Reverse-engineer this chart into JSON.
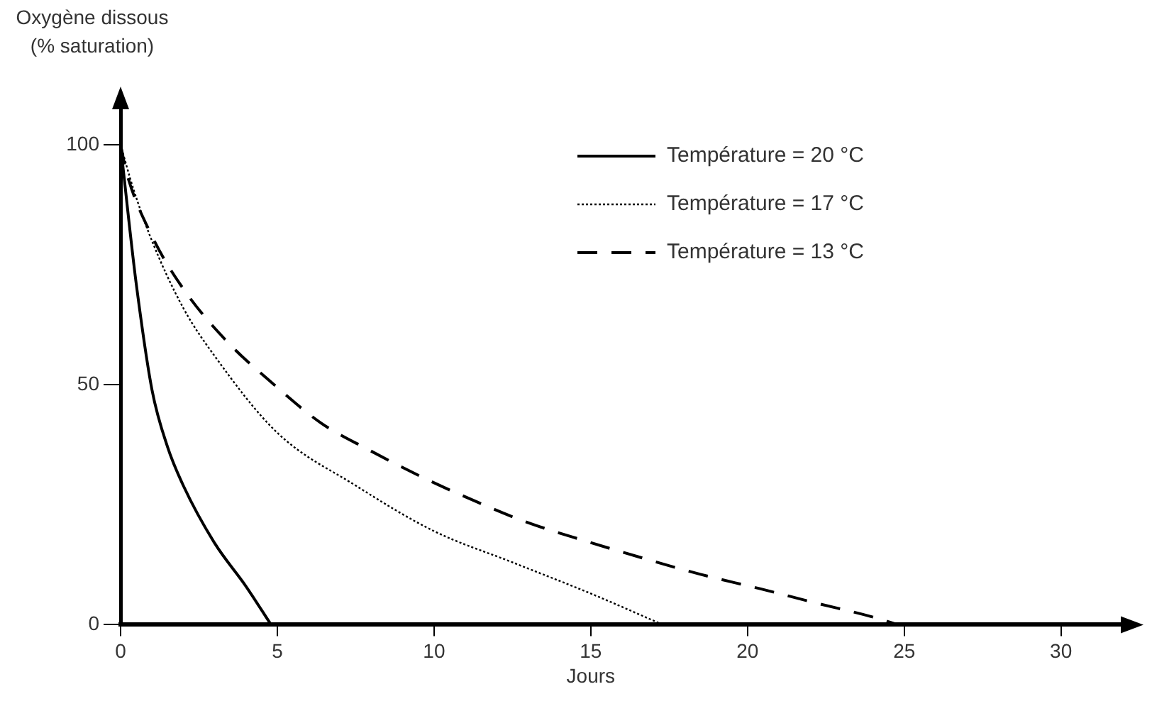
{
  "chart_data": {
    "type": "line",
    "xlabel": "Jours",
    "ylabel": "Oxygène dissous\n(% saturation)",
    "xlim": [
      0,
      32
    ],
    "ylim": [
      0,
      108
    ],
    "xticks": [
      0,
      5,
      10,
      15,
      20,
      25,
      30
    ],
    "yticks": [
      0,
      50,
      100
    ],
    "grid": false,
    "legend": "top right",
    "marker": "none",
    "series": [
      {
        "name": "Température = 20 °C",
        "color": "#000000",
        "line_style": "solid",
        "x": [
          0,
          0.25,
          0.5,
          1,
          1.5,
          2,
          3,
          4,
          4.8
        ],
        "values": [
          100,
          85,
          71,
          49,
          37,
          29,
          17,
          8,
          0
        ]
      },
      {
        "name": "Température = 17 °C",
        "color": "#000000",
        "line_style": "dotted",
        "x": [
          0,
          0.4,
          1,
          2,
          3,
          5,
          7.5,
          10,
          12.5,
          15,
          17.3
        ],
        "values": [
          100,
          91,
          80,
          66,
          56,
          40,
          29,
          19.5,
          13,
          6.5,
          0
        ]
      },
      {
        "name": "Température = 13 °C",
        "color": "#000000",
        "line_style": "dashed",
        "x": [
          0,
          0.2,
          1,
          2,
          3.4,
          4.9,
          6.4,
          7.9,
          9.7,
          11.4,
          12.9,
          14.8,
          16.6,
          18.5,
          20.4,
          22.2,
          24,
          24.8
        ],
        "values": [
          100,
          94,
          81,
          70,
          59,
          50,
          42,
          36.5,
          30.5,
          25.5,
          21.5,
          17.5,
          14,
          10.5,
          7.5,
          4.5,
          1.6,
          0
        ]
      }
    ]
  }
}
